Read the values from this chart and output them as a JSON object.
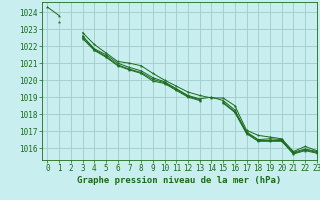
{
  "background_color": "#c8eef0",
  "grid_color": "#a0cccc",
  "line_color": "#1a6b1a",
  "title": "Graphe pression niveau de la mer (hPa)",
  "xlim": [
    -0.5,
    23
  ],
  "ylim": [
    1015.3,
    1024.6
  ],
  "yticks": [
    1016,
    1017,
    1018,
    1019,
    1020,
    1021,
    1022,
    1023,
    1024
  ],
  "xticks": [
    0,
    1,
    2,
    3,
    4,
    5,
    6,
    7,
    8,
    9,
    10,
    11,
    12,
    13,
    14,
    15,
    16,
    17,
    18,
    19,
    20,
    21,
    22,
    23
  ],
  "series": [
    [
      1024.3,
      1023.8,
      null,
      1022.8,
      1022.1,
      1021.6,
      1021.1,
      1021.0,
      1020.85,
      1020.4,
      1020.0,
      1019.65,
      1019.3,
      1019.1,
      1018.95,
      1018.95,
      1018.5,
      1017.05,
      1016.75,
      1016.65,
      1016.55,
      1015.8,
      1016.1,
      1015.85
    ],
    [
      null,
      1023.45,
      null,
      1022.6,
      1021.85,
      1021.5,
      1021.0,
      1020.75,
      1020.55,
      1020.15,
      1019.9,
      1019.5,
      1019.1,
      1018.9,
      1019.0,
      1018.8,
      1018.25,
      1016.95,
      1016.5,
      1016.55,
      1016.5,
      1015.75,
      1015.95,
      1015.8
    ],
    [
      null,
      null,
      null,
      1022.55,
      1021.8,
      1021.4,
      1020.9,
      1020.65,
      1020.45,
      1020.05,
      1019.85,
      1019.45,
      1019.05,
      1018.85,
      null,
      1018.7,
      1018.15,
      1016.9,
      1016.45,
      1016.45,
      1016.45,
      1015.7,
      1015.9,
      1015.75
    ],
    [
      null,
      null,
      null,
      1022.45,
      1021.75,
      1021.35,
      1020.85,
      1020.6,
      1020.4,
      1019.95,
      1019.8,
      1019.4,
      1019.0,
      1018.8,
      null,
      1018.65,
      1018.1,
      1016.85,
      1016.4,
      1016.4,
      1016.4,
      1015.65,
      1015.85,
      1015.7
    ]
  ],
  "figsize": [
    3.2,
    2.0
  ],
  "dpi": 100,
  "title_fontsize": 6.5,
  "tick_fontsize": 5.5
}
